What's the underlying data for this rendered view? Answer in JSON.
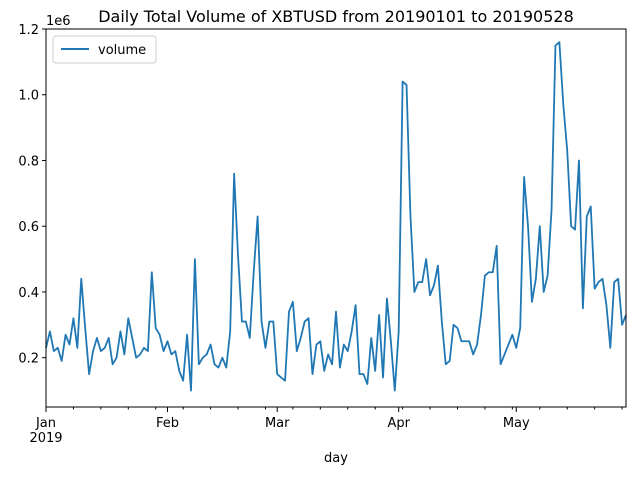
{
  "chart_data": {
    "type": "line",
    "title": "Daily Total Volume of XBTUSD from 20190101 to 20190528",
    "xlabel": "day",
    "ylabel": "",
    "y_scale_label": "1e6",
    "ylim": [
      0.05,
      1.2
    ],
    "yticks": [
      0.2,
      0.4,
      0.6,
      0.8,
      1.0,
      1.2
    ],
    "ytick_labels": [
      "0.2",
      "0.4",
      "0.6",
      "0.8",
      "1.0",
      "1.2"
    ],
    "xlim": [
      0,
      148
    ],
    "xticks": [
      0,
      31,
      59,
      90,
      120
    ],
    "xtick_labels": [
      "Jan",
      "Feb",
      "Mar",
      "Apr",
      "May"
    ],
    "xtick_year_label": "2019",
    "legend_position": "top-left",
    "grid": false,
    "series": [
      {
        "name": "volume",
        "color": "#1f77b4",
        "values": [
          0.23,
          0.28,
          0.22,
          0.23,
          0.19,
          0.27,
          0.24,
          0.32,
          0.23,
          0.44,
          0.29,
          0.15,
          0.22,
          0.26,
          0.22,
          0.23,
          0.26,
          0.18,
          0.2,
          0.28,
          0.21,
          0.32,
          0.26,
          0.2,
          0.21,
          0.23,
          0.22,
          0.46,
          0.29,
          0.27,
          0.22,
          0.25,
          0.21,
          0.22,
          0.16,
          0.13,
          0.27,
          0.1,
          0.5,
          0.18,
          0.2,
          0.21,
          0.24,
          0.18,
          0.17,
          0.2,
          0.17,
          0.28,
          0.76,
          0.51,
          0.31,
          0.31,
          0.26,
          0.46,
          0.63,
          0.31,
          0.23,
          0.31,
          0.31,
          0.15,
          0.14,
          0.13,
          0.34,
          0.37,
          0.22,
          0.26,
          0.31,
          0.32,
          0.15,
          0.24,
          0.25,
          0.16,
          0.21,
          0.18,
          0.34,
          0.17,
          0.24,
          0.22,
          0.28,
          0.36,
          0.15,
          0.15,
          0.12,
          0.26,
          0.16,
          0.33,
          0.14,
          0.38,
          0.25,
          0.1,
          0.28,
          1.04,
          1.03,
          0.63,
          0.4,
          0.43,
          0.43,
          0.5,
          0.39,
          0.42,
          0.48,
          0.31,
          0.18,
          0.19,
          0.3,
          0.29,
          0.25,
          0.25,
          0.25,
          0.21,
          0.24,
          0.33,
          0.45,
          0.46,
          0.46,
          0.54,
          0.18,
          0.21,
          0.24,
          0.27,
          0.23,
          0.29,
          0.75,
          0.6,
          0.37,
          0.44,
          0.6,
          0.4,
          0.45,
          0.65,
          1.15,
          1.16,
          0.97,
          0.83,
          0.6,
          0.59,
          0.8,
          0.35,
          0.63,
          0.66,
          0.41,
          0.43,
          0.44,
          0.36,
          0.23,
          0.43,
          0.44,
          0.3,
          0.33
        ]
      }
    ]
  }
}
